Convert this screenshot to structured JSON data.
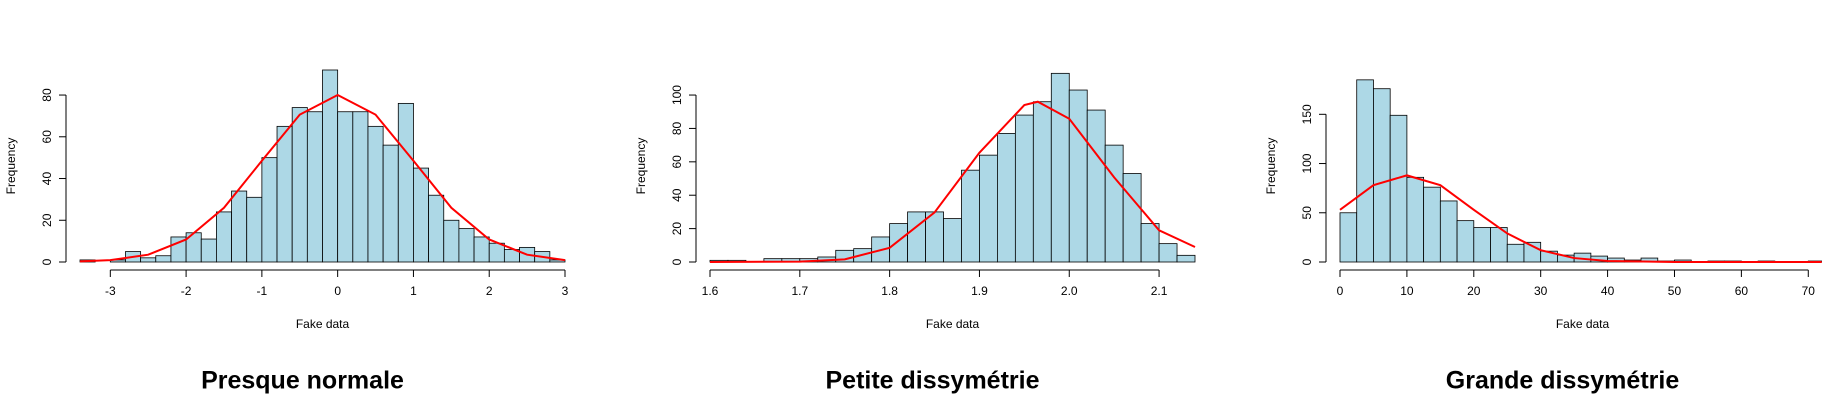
{
  "chart_data": [
    {
      "type": "histogram",
      "title": "Presque normale",
      "xlabel": "Fake data",
      "ylabel": "Frequency",
      "bins": [
        -3.4,
        -3.2,
        -3.0,
        -2.8,
        -2.6,
        -2.4,
        -2.2,
        -2.0,
        -1.8,
        -1.6,
        -1.4,
        -1.2,
        -1.0,
        -0.8,
        -0.6,
        -0.4,
        -0.2,
        0,
        0.2,
        0.4,
        0.6,
        0.8,
        1.0,
        1.2,
        1.4,
        1.6,
        1.8,
        2.0,
        2.2,
        2.4,
        2.6,
        2.8,
        3.0
      ],
      "values": [
        1,
        0,
        1,
        5,
        2,
        3,
        12,
        14,
        11,
        24,
        34,
        31,
        50,
        65,
        74,
        72,
        92,
        72,
        72,
        65,
        56,
        76,
        45,
        32,
        20,
        16,
        12,
        9,
        6,
        7,
        5,
        1
      ],
      "color": "#add8e6",
      "curve": {
        "color": "#ff0000",
        "x": [
          -3.4,
          -3,
          -2.5,
          -2,
          -1.5,
          -1,
          -0.5,
          0,
          0.5,
          1,
          1.5,
          2,
          2.5,
          3
        ],
        "values": [
          0.3,
          0.9,
          3.5,
          10.8,
          26,
          48.5,
          70.6,
          80,
          70.6,
          48.5,
          26,
          10.8,
          3.5,
          0.9
        ]
      },
      "xlim": [
        -3.4,
        3.0
      ],
      "xticks": [
        -3,
        -2,
        -1,
        0,
        1,
        2,
        3
      ],
      "ylim": [
        0,
        92
      ],
      "yticks": [
        0,
        20,
        40,
        60,
        80
      ]
    },
    {
      "type": "histogram",
      "title": "Petite dissymétrie",
      "xlabel": "Fake data",
      "ylabel": "Frequency",
      "bins": [
        1.6,
        1.62,
        1.64,
        1.66,
        1.68,
        1.7,
        1.72,
        1.74,
        1.76,
        1.78,
        1.8,
        1.82,
        1.84,
        1.86,
        1.88,
        1.9,
        1.92,
        1.94,
        1.96,
        1.98,
        2.0,
        2.02,
        2.04,
        2.06,
        2.08,
        2.1,
        2.12,
        2.14
      ],
      "values": [
        1,
        1,
        0,
        2,
        2,
        2,
        3,
        7,
        8,
        15,
        23,
        30,
        30,
        26,
        55,
        64,
        77,
        88,
        96,
        113,
        103,
        91,
        70,
        53,
        23,
        11,
        4
      ],
      "color": "#add8e6",
      "curve": {
        "color": "#ff0000",
        "x": [
          1.6,
          1.7,
          1.75,
          1.8,
          1.85,
          1.9,
          1.95,
          1.965,
          2.0,
          2.05,
          2.1,
          2.14
        ],
        "values": [
          0,
          0.2,
          1.6,
          8.5,
          29.7,
          65.5,
          94,
          96,
          85.8,
          50.7,
          19,
          9
        ]
      },
      "xlim": [
        1.6,
        2.14
      ],
      "xticks": [
        {
          "value": 1.6,
          "label": "1.6"
        },
        {
          "value": 1.7,
          "label": "1.7"
        },
        {
          "value": 1.8,
          "label": "1.8"
        },
        {
          "value": 1.9,
          "label": "1.9"
        },
        {
          "value": 2.0,
          "label": "2.0"
        },
        {
          "value": 2.1,
          "label": "2.1"
        }
      ],
      "ylim": [
        0,
        115
      ],
      "yticks": [
        0,
        20,
        40,
        60,
        80,
        100
      ]
    },
    {
      "type": "histogram",
      "title": "Grande dissymétrie",
      "xlabel": "Fake data",
      "ylabel": "Frequency",
      "bins": [
        0,
        2.5,
        5,
        7.5,
        10,
        12.5,
        15,
        17.5,
        20,
        22.5,
        25,
        27.5,
        30,
        32.5,
        35,
        37.5,
        40,
        42.5,
        45,
        47.5,
        50,
        52.5,
        55,
        57.5,
        60,
        62.5,
        65,
        67.5,
        70,
        72.5
      ],
      "values": [
        50,
        185,
        176,
        149,
        86,
        76,
        62,
        42,
        35,
        35,
        18,
        20,
        11,
        7,
        9,
        6,
        4,
        2,
        4,
        1,
        2,
        0,
        1,
        1,
        0,
        1,
        0,
        0,
        1
      ],
      "color": "#add8e6",
      "curve": {
        "color": "#ff0000",
        "x": [
          0,
          5,
          10,
          15,
          20,
          25,
          30,
          35,
          40,
          50,
          72
        ],
        "values": [
          53,
          78,
          88,
          78,
          53,
          29,
          12,
          4,
          1,
          0,
          0
        ]
      },
      "xlim": [
        0,
        72.5
      ],
      "xticks": [
        0,
        10,
        20,
        30,
        40,
        50,
        60,
        70
      ],
      "ylim": [
        0,
        195
      ],
      "yticks": [
        0,
        50,
        100,
        150
      ]
    }
  ]
}
